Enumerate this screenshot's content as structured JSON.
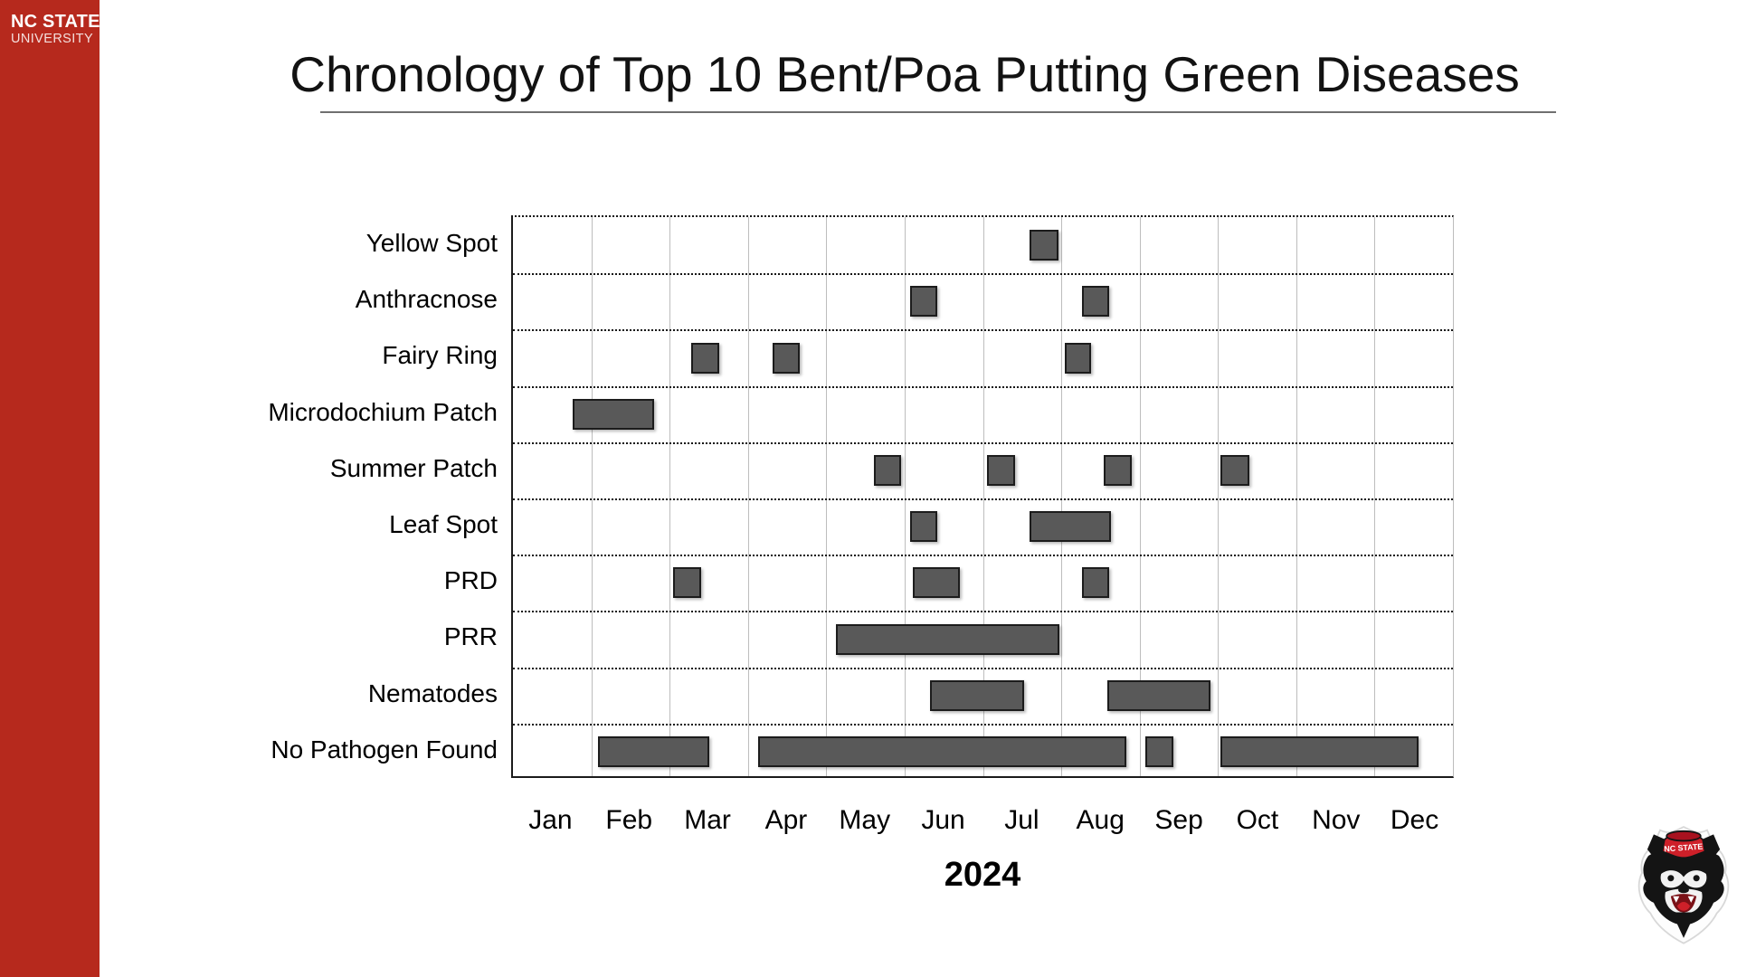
{
  "sidebar": {
    "wordmark_line1": "NC STATE",
    "wordmark_line2": "UNIVERSITY",
    "background_color": "#B6291D"
  },
  "header": {
    "title": "Chronology of Top 10 Bent/Poa Putting Green Diseases"
  },
  "footer": {
    "year_label": "2024"
  },
  "mascot": {
    "description": "NC State wolf mascot head logo",
    "hat_text": "NC STATE",
    "hat_color": "#CE2029"
  },
  "chart_data": {
    "type": "gantt",
    "title": "Chronology of Top 10 Bent/Poa Putting Green Diseases",
    "xlabel": "2024",
    "x_tick_labels": [
      "Jan",
      "Feb",
      "Mar",
      "Apr",
      "May",
      "Jun",
      "Jul",
      "Aug",
      "Sep",
      "Oct",
      "Nov",
      "Dec"
    ],
    "x_range_months": [
      0,
      12
    ],
    "legend": "none",
    "grid": {
      "vertical": "solid light-gray line at each month boundary",
      "horizontal": "fine dotted black separator between disease rows",
      "border": "solid black left/bottom, dotted black top, gray right"
    },
    "bar_color": "#595959",
    "bar_border_color": "#1C1C1C",
    "rows": [
      {
        "label": "Yellow Spot",
        "bars": [
          {
            "start": 6.6,
            "end": 6.96,
            "approx_dates": "Jul 18 - Jul 29"
          }
        ]
      },
      {
        "label": "Anthracnose",
        "bars": [
          {
            "start": 5.07,
            "end": 5.42,
            "approx_dates": "Jun 2 - Jun 13"
          },
          {
            "start": 7.26,
            "end": 7.61,
            "approx_dates": "Aug 8 - Aug 19"
          }
        ]
      },
      {
        "label": "Fairy Ring",
        "bars": [
          {
            "start": 2.27,
            "end": 2.63,
            "approx_dates": "Mar 9 - Mar 20"
          },
          {
            "start": 3.31,
            "end": 3.66,
            "approx_dates": "Apr 10 - Apr 20"
          },
          {
            "start": 7.04,
            "end": 7.38,
            "approx_dates": "Aug 2 - Aug 12"
          }
        ]
      },
      {
        "label": "Microdochium Patch",
        "bars": [
          {
            "start": 0.76,
            "end": 1.8,
            "approx_dates": "Jan 24 - Feb 23"
          }
        ]
      },
      {
        "label": "Summer Patch",
        "bars": [
          {
            "start": 4.61,
            "end": 4.96,
            "approx_dates": "May 19 - May 30"
          },
          {
            "start": 6.05,
            "end": 6.41,
            "approx_dates": "Jul 2 - Jul 13"
          },
          {
            "start": 7.54,
            "end": 7.9,
            "approx_dates": "Aug 17 - Aug 28"
          },
          {
            "start": 9.03,
            "end": 9.4,
            "approx_dates": "Oct 1 - Oct 13"
          }
        ]
      },
      {
        "label": "Leaf Spot",
        "bars": [
          {
            "start": 5.07,
            "end": 5.42,
            "approx_dates": "Jun 2 - Jun 13"
          },
          {
            "start": 6.6,
            "end": 7.64,
            "approx_dates": "Jul 19 - Aug 20"
          }
        ]
      },
      {
        "label": "PRD",
        "bars": [
          {
            "start": 2.04,
            "end": 2.4,
            "approx_dates": "Mar 2 - Mar 13"
          },
          {
            "start": 5.1,
            "end": 5.71,
            "approx_dates": "Jun 4 - Jun 22"
          },
          {
            "start": 7.27,
            "end": 7.61,
            "approx_dates": "Aug 9 - Aug 19"
          }
        ]
      },
      {
        "label": "PRR",
        "bars": [
          {
            "start": 4.12,
            "end": 6.98,
            "approx_dates": "May 4 - Jul 30"
          }
        ]
      },
      {
        "label": "Nematodes",
        "bars": [
          {
            "start": 5.33,
            "end": 6.53,
            "approx_dates": "Jun 10 - Jul 16"
          },
          {
            "start": 7.59,
            "end": 8.91,
            "approx_dates": "Aug 18 - Sep 28"
          }
        ]
      },
      {
        "label": "No Pathogen Found",
        "bars": [
          {
            "start": 1.09,
            "end": 2.51,
            "approx_dates": "Feb 3 - Mar 16"
          },
          {
            "start": 3.13,
            "end": 7.83,
            "approx_dates": "Apr 5 - Aug 26"
          },
          {
            "start": 8.07,
            "end": 8.43,
            "approx_dates": "Sep 3 - Sep 13"
          },
          {
            "start": 9.03,
            "end": 11.56,
            "approx_dates": "Oct 1 - Dec 17"
          }
        ]
      }
    ]
  }
}
